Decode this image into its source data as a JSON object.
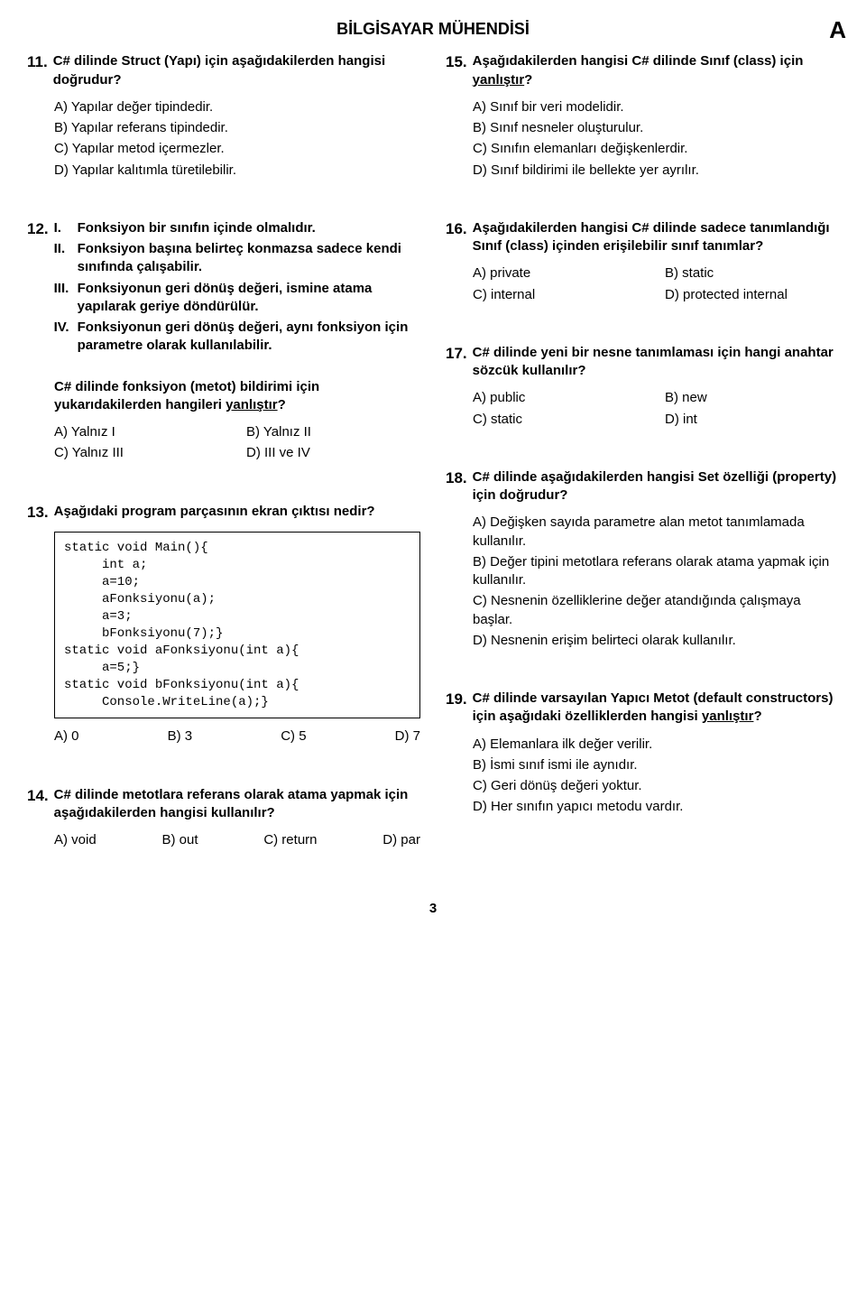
{
  "header": {
    "title": "BİLGİSAYAR MÜHENDİSİ",
    "booklet": "A"
  },
  "page_number": "3",
  "left": {
    "q11": {
      "num": "11.",
      "stem": "C# dilinde Struct (Yapı) için aşağıdakilerden hangisi doğrudur?",
      "A": "A) Yapılar değer tipindedir.",
      "B": "B) Yapılar referans tipindedir.",
      "C": "C) Yapılar metod içermezler.",
      "D": "D) Yapılar kalıtımla türetilebilir."
    },
    "q12": {
      "num": "12.",
      "r1n": "I.",
      "r1": "Fonksiyon bir sınıfın içinde olmalıdır.",
      "r2n": "II.",
      "r2": "Fonksiyon başına belirteç konmazsa sadece kendi sınıfında çalışabilir.",
      "r3n": "III.",
      "r3": "Fonksiyonun geri dönüş değeri, ismine atama yapılarak geriye döndürülür.",
      "r4n": "IV.",
      "r4": "Fonksiyonun geri dönüş değeri, aynı fonksiyon için parametre olarak kullanılabilir.",
      "sub_pre": "C# dilinde fonksiyon (metot) bildirimi için yukarıdakilerden hangileri ",
      "sub_u": "yanlıştır",
      "sub_post": "?",
      "A": "A) Yalnız I",
      "B": "B) Yalnız II",
      "C": "C) Yalnız III",
      "D": "D) III ve IV"
    },
    "q13": {
      "num": "13.",
      "stem": "Aşağıdaki program parçasının ekran çıktısı nedir?",
      "code": "static void Main(){\n     int a;\n     a=10;\n     aFonksiyonu(a);\n     a=3;\n     bFonksiyonu(7);}\nstatic void aFonksiyonu(int a){\n     a=5;}\nstatic void bFonksiyonu(int a){\n     Console.WriteLine(a);}",
      "A": "A) 0",
      "B": "B) 3",
      "C": "C) 5",
      "D": "D) 7"
    },
    "q14": {
      "num": "14.",
      "stem": "C# dilinde metotlara referans olarak atama yapmak için aşağıdakilerden hangisi kullanılır?",
      "A": "A) void",
      "B": "B) out",
      "C": "C) return",
      "D": "D) par"
    }
  },
  "right": {
    "q15": {
      "num": "15.",
      "stem_pre": "Aşağıdakilerden hangisi C# dilinde Sınıf (class) için ",
      "stem_u": "yanlıştır",
      "stem_post": "?",
      "A": "A) Sınıf bir veri modelidir.",
      "B": "B) Sınıf nesneler oluşturulur.",
      "C": "C) Sınıfın elemanları değişkenlerdir.",
      "D": "D) Sınıf bildirimi ile bellekte yer ayrılır."
    },
    "q16": {
      "num": "16.",
      "stem": "Aşağıdakilerden hangisi C# dilinde sadece tanımlandığı Sınıf (class) içinden erişilebilir sınıf tanımlar?",
      "A": "A) private",
      "B": "B) static",
      "C": "C) internal",
      "D": "D) protected internal"
    },
    "q17": {
      "num": "17.",
      "stem": "C# dilinde yeni bir nesne tanımlaması için hangi anahtar sözcük kullanılır?",
      "A": "A) public",
      "B": "B) new",
      "C": "C) static",
      "D": "D) int"
    },
    "q18": {
      "num": "18.",
      "stem": "C# dilinde aşağıdakilerden hangisi Set özelliği (property) için doğrudur?",
      "A": "A) Değişken sayıda parametre alan metot tanımlamada kullanılır.",
      "B": "B) Değer tipini metotlara referans olarak atama yapmak  için kullanılır.",
      "C": "C) Nesnenin özelliklerine değer atandığında çalışmaya başlar.",
      "D": "D) Nesnenin erişim belirteci olarak kullanılır."
    },
    "q19": {
      "num": "19.",
      "stem_pre": "C# dilinde varsayılan Yapıcı Metot (default constructors) için aşağıdaki özelliklerden hangisi ",
      "stem_u": "yanlıştır",
      "stem_post": "?",
      "A": "A) Elemanlara ilk değer verilir.",
      "B": "B) İsmi sınıf ismi ile aynıdır.",
      "C": "C) Geri dönüş değeri yoktur.",
      "D": "D) Her sınıfın yapıcı metodu vardır."
    }
  }
}
